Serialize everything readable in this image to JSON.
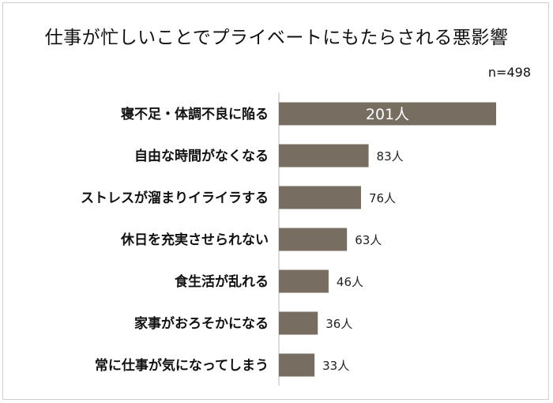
{
  "chart_data": {
    "type": "bar",
    "orientation": "horizontal",
    "title": "仕事が忙しいことでプライベートにもたらされる悪影響",
    "sample_label": "n=498",
    "unit": "人",
    "categories": [
      "寝不足・体調不良に陥る",
      "自由な時間がなくなる",
      "ストレスが溜まりイライラする",
      "休日を充実させられない",
      "食生活が乱れる",
      "家事がおろそかになる",
      "常に仕事が気になってしまう"
    ],
    "values": [
      201,
      83,
      76,
      63,
      46,
      36,
      33
    ],
    "value_labels": [
      "201人",
      "83人",
      "76人",
      "63人",
      "46人",
      "36人",
      "33人"
    ],
    "xlim": [
      0,
      201
    ],
    "bar_color": "#776d61",
    "axis_color": "#b8b8b8"
  }
}
